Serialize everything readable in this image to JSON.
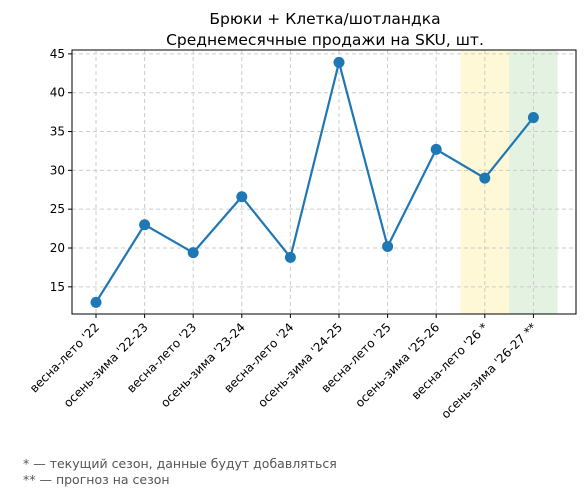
{
  "chart_data": {
    "type": "line",
    "title": [
      "Брюки + Клетка/шотландка",
      "Среднемесячные продажи на SKU, шт."
    ],
    "xlabel": "",
    "ylabel": "",
    "categories": [
      "весна-лето '22",
      "осень-зима '22-23",
      "весна-лето '23",
      "осень-зима '23-24",
      "весна-лето '24",
      "осень-зима '24-25",
      "весна-лето '25",
      "осень-зима '25-26",
      "весна-лето '26 *",
      "осень-зима '26-27 **"
    ],
    "series": [
      {
        "values": [
          13.0,
          23.0,
          19.4,
          26.6,
          18.8,
          43.9,
          20.2,
          32.7,
          29.0,
          36.8
        ],
        "color": "#1f77b4"
      }
    ],
    "ylim": [
      11.5,
      45.5
    ],
    "yticks": [
      15,
      20,
      25,
      30,
      35,
      40,
      45
    ],
    "grid": true,
    "highlight_bands": [
      {
        "category": "весна-лето '26 *",
        "color": "#fff8d6"
      },
      {
        "category": "осень-зима '26-27 **",
        "color": "#e4f2e1"
      }
    ]
  },
  "footnotes": [
    "* — текущий сезон, данные будут добавляться",
    "** — прогноз на сезон"
  ]
}
